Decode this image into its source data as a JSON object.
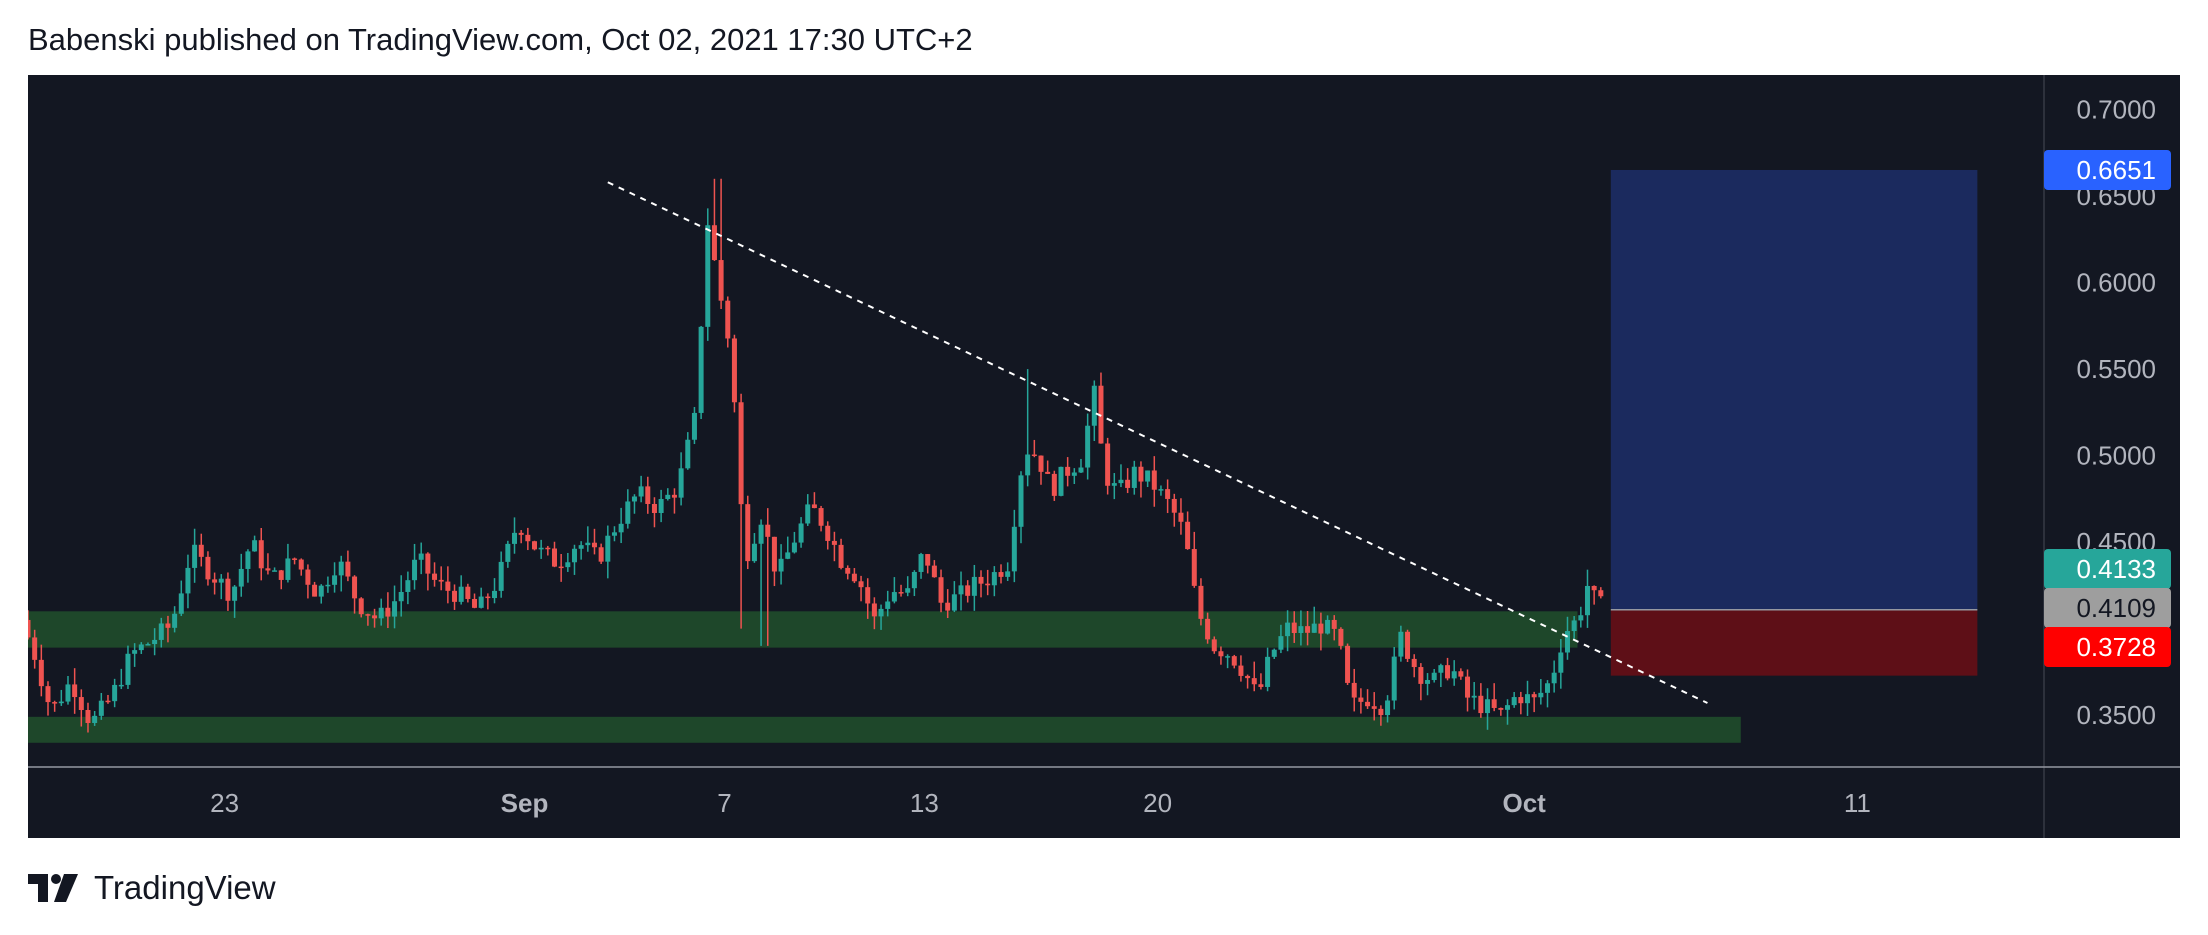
{
  "header": {
    "published_line": "Babenski published on TradingView.com, Oct 02, 2021 17:30 UTC+2"
  },
  "footer": {
    "brand": "TradingView"
  },
  "colors": {
    "background": "#131722",
    "up": "#26a69a",
    "down": "#ef5350",
    "zone": "#1f4a2b",
    "target_box": "#1b2a5e",
    "stop_box": "#5e0f17",
    "axis_text": "#b2b5be"
  },
  "chart_data": {
    "type": "candlestick",
    "y_ticks": [
      "0.7000",
      "0.6500",
      "0.6000",
      "0.5500",
      "0.5000",
      "0.4500",
      "0.3500"
    ],
    "x_ticks": [
      {
        "label": "23",
        "bold": false,
        "day": 23
      },
      {
        "label": "Sep",
        "bold": true,
        "day": 32
      },
      {
        "label": "7",
        "bold": false,
        "day": 38
      },
      {
        "label": "13",
        "bold": false,
        "day": 44
      },
      {
        "label": "20",
        "bold": false,
        "day": 51
      },
      {
        "label": "Oct",
        "bold": true,
        "day": 62
      },
      {
        "label": "11",
        "bold": false,
        "day": 72
      }
    ],
    "ylim": [
      0.32,
      0.72
    ],
    "xlim_days": [
      17.1,
      77.6
    ],
    "price_labels": [
      {
        "value": "0.6651",
        "role": "target",
        "color": "#2962ff"
      },
      {
        "value": "0.4133",
        "role": "current",
        "color": "#26a69a"
      },
      {
        "value": "0.4109",
        "role": "entry",
        "color": "#9e9e9e"
      },
      {
        "value": "0.3728",
        "role": "stop",
        "color": "#ff0000"
      }
    ],
    "support_zones": [
      {
        "from_day": 17.1,
        "to_day": 63.6,
        "low": 0.389,
        "high": 0.41
      },
      {
        "from_day": 17.1,
        "to_day": 68.5,
        "low": 0.334,
        "high": 0.349
      }
    ],
    "trendline": {
      "from": {
        "day": 34.5,
        "value": 0.658
      },
      "to": {
        "day": 67.5,
        "value": 0.357
      }
    },
    "position": {
      "from_day": 64.6,
      "to_day": 75.6,
      "target": 0.6651,
      "entry": 0.4109,
      "stop": 0.3728
    },
    "candles_anchor_path": [
      [
        17.1,
        0.405
      ],
      [
        17.5,
        0.385
      ],
      [
        18.0,
        0.352
      ],
      [
        18.6,
        0.37
      ],
      [
        19.2,
        0.345
      ],
      [
        19.8,
        0.36
      ],
      [
        20.4,
        0.385
      ],
      [
        21.0,
        0.393
      ],
      [
        21.6,
        0.402
      ],
      [
        22.2,
        0.445
      ],
      [
        22.8,
        0.432
      ],
      [
        23.4,
        0.42
      ],
      [
        24.0,
        0.45
      ],
      [
        24.6,
        0.428
      ],
      [
        25.3,
        0.44
      ],
      [
        26.0,
        0.42
      ],
      [
        26.6,
        0.44
      ],
      [
        27.2,
        0.415
      ],
      [
        27.8,
        0.405
      ],
      [
        28.4,
        0.418
      ],
      [
        29.0,
        0.44
      ],
      [
        29.6,
        0.425
      ],
      [
        30.2,
        0.42
      ],
      [
        30.8,
        0.41
      ],
      [
        31.4,
        0.428
      ],
      [
        32.0,
        0.462
      ],
      [
        32.6,
        0.445
      ],
      [
        33.2,
        0.438
      ],
      [
        33.8,
        0.45
      ],
      [
        34.4,
        0.44
      ],
      [
        35.0,
        0.462
      ],
      [
        35.6,
        0.478
      ],
      [
        36.2,
        0.47
      ],
      [
        36.8,
        0.482
      ],
      [
        37.3,
        0.52
      ],
      [
        37.7,
        0.635
      ],
      [
        38.0,
        0.6
      ],
      [
        38.4,
        0.56
      ],
      [
        38.8,
        0.44
      ],
      [
        39.3,
        0.465
      ],
      [
        39.8,
        0.43
      ],
      [
        40.3,
        0.452
      ],
      [
        40.8,
        0.47
      ],
      [
        41.2,
        0.46
      ],
      [
        41.7,
        0.44
      ],
      [
        42.2,
        0.43
      ],
      [
        42.7,
        0.405
      ],
      [
        43.2,
        0.422
      ],
      [
        43.7,
        0.42
      ],
      [
        44.2,
        0.445
      ],
      [
        44.7,
        0.415
      ],
      [
        45.2,
        0.418
      ],
      [
        45.7,
        0.425
      ],
      [
        46.2,
        0.43
      ],
      [
        46.7,
        0.438
      ],
      [
        47.2,
        0.505
      ],
      [
        47.6,
        0.5
      ],
      [
        48.0,
        0.48
      ],
      [
        48.4,
        0.49
      ],
      [
        48.9,
        0.498
      ],
      [
        49.3,
        0.535
      ],
      [
        49.6,
        0.49
      ],
      [
        50.0,
        0.478
      ],
      [
        50.5,
        0.49
      ],
      [
        51.0,
        0.485
      ],
      [
        51.6,
        0.47
      ],
      [
        52.0,
        0.455
      ],
      [
        52.4,
        0.41
      ],
      [
        52.9,
        0.39
      ],
      [
        53.4,
        0.385
      ],
      [
        53.8,
        0.375
      ],
      [
        54.2,
        0.36
      ],
      [
        54.6,
        0.385
      ],
      [
        55.1,
        0.4
      ],
      [
        55.6,
        0.398
      ],
      [
        56.1,
        0.402
      ],
      [
        56.6,
        0.395
      ],
      [
        57.0,
        0.355
      ],
      [
        57.5,
        0.36
      ],
      [
        58.0,
        0.355
      ],
      [
        58.5,
        0.395
      ],
      [
        59.0,
        0.375
      ],
      [
        59.5,
        0.37
      ],
      [
        60.0,
        0.378
      ],
      [
        60.5,
        0.36
      ],
      [
        61.0,
        0.355
      ],
      [
        61.5,
        0.35
      ],
      [
        62.0,
        0.362
      ],
      [
        62.5,
        0.358
      ],
      [
        63.0,
        0.37
      ],
      [
        63.4,
        0.398
      ],
      [
        63.8,
        0.405
      ],
      [
        64.1,
        0.425
      ],
      [
        64.4,
        0.413
      ]
    ]
  }
}
